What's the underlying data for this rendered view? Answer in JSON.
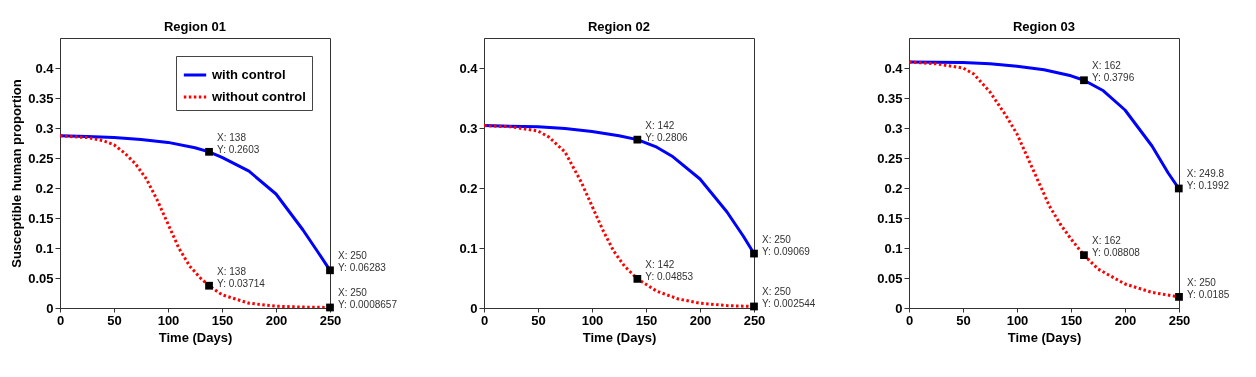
{
  "chart_data": [
    {
      "type": "line",
      "title": "Region 01",
      "xlabel": "Time (Days)",
      "ylabel": "Susceptible human proportion",
      "xlim": [
        0,
        250
      ],
      "ylim": [
        0,
        0.45
      ],
      "xticks": [
        0,
        50,
        100,
        150,
        200,
        250
      ],
      "yticks": [
        0,
        0.05,
        0.1,
        0.15,
        0.2,
        0.25,
        0.3,
        0.35,
        0.4
      ],
      "legend": "top right",
      "series": [
        {
          "name": "with control",
          "color": "#0000ff",
          "line_style": "solid",
          "x": [
            0,
            25,
            50,
            75,
            100,
            125,
            138,
            150,
            175,
            200,
            225,
            240,
            250
          ],
          "values": [
            0.287,
            0.286,
            0.284,
            0.281,
            0.276,
            0.267,
            0.2603,
            0.251,
            0.228,
            0.19,
            0.13,
            0.09,
            0.06283
          ]
        },
        {
          "name": "without control",
          "color": "#ff0000",
          "line_style": "dotted",
          "x": [
            0,
            25,
            40,
            50,
            60,
            70,
            80,
            90,
            100,
            110,
            120,
            130,
            138,
            150,
            175,
            200,
            225,
            250
          ],
          "values": [
            0.287,
            0.284,
            0.279,
            0.272,
            0.258,
            0.24,
            0.215,
            0.18,
            0.14,
            0.1,
            0.07,
            0.05,
            0.03714,
            0.022,
            0.008,
            0.003,
            0.0015,
            0.0008657
          ]
        }
      ],
      "annotations": [
        {
          "text": "X: 138\nY: 0.2603",
          "x": 138,
          "y": 0.2603
        },
        {
          "text": "X: 138\nY: 0.03714",
          "x": 138,
          "y": 0.03714
        },
        {
          "text": "X: 250\nY: 0.06283",
          "x": 250,
          "y": 0.06283
        },
        {
          "text": "X: 250\nY: 0.0008657",
          "x": 250,
          "y": 0.0008657
        }
      ]
    },
    {
      "type": "line",
      "title": "Region 02",
      "xlabel": "Time (Days)",
      "xlim": [
        0,
        250
      ],
      "ylim": [
        0,
        0.45
      ],
      "xticks": [
        0,
        50,
        100,
        150,
        200,
        250
      ],
      "yticks": [
        0,
        0.1,
        0.2,
        0.3,
        0.4
      ],
      "series": [
        {
          "color": "#0000ff",
          "line_style": "solid",
          "x": [
            0,
            50,
            75,
            100,
            125,
            142,
            160,
            175,
            200,
            225,
            240,
            250
          ],
          "values": [
            0.304,
            0.302,
            0.299,
            0.294,
            0.287,
            0.2806,
            0.268,
            0.252,
            0.215,
            0.16,
            0.12,
            0.09069
          ]
        },
        {
          "color": "#ff0000",
          "line_style": "dotted",
          "x": [
            0,
            25,
            50,
            60,
            75,
            90,
            100,
            110,
            120,
            130,
            142,
            160,
            180,
            200,
            225,
            250
          ],
          "values": [
            0.304,
            0.302,
            0.295,
            0.285,
            0.26,
            0.21,
            0.17,
            0.13,
            0.095,
            0.07,
            0.04853,
            0.028,
            0.015,
            0.008,
            0.004,
            0.002544
          ]
        }
      ],
      "annotations": [
        {
          "text": "X: 142\nY: 0.2806",
          "x": 142,
          "y": 0.2806
        },
        {
          "text": "X: 142\nY: 0.04853",
          "x": 142,
          "y": 0.04853
        },
        {
          "text": "X: 250\nY: 0.09069",
          "x": 250,
          "y": 0.09069
        },
        {
          "text": "X: 250\nY: 0.002544",
          "x": 250,
          "y": 0.002544
        }
      ]
    },
    {
      "type": "line",
      "title": "Region 03",
      "xlabel": "Time (Days)",
      "xlim": [
        0,
        250
      ],
      "ylim": [
        0,
        0.45
      ],
      "xticks": [
        0,
        50,
        100,
        150,
        200,
        250
      ],
      "yticks": [
        0,
        0.05,
        0.1,
        0.15,
        0.2,
        0.25,
        0.3,
        0.35,
        0.4
      ],
      "series": [
        {
          "color": "#0000ff",
          "line_style": "solid",
          "x": [
            0,
            50,
            75,
            100,
            125,
            150,
            162,
            180,
            200,
            225,
            240,
            249.8
          ],
          "values": [
            0.41,
            0.409,
            0.407,
            0.403,
            0.397,
            0.387,
            0.3796,
            0.362,
            0.33,
            0.27,
            0.225,
            0.1992
          ]
        },
        {
          "color": "#ff0000",
          "line_style": "dotted",
          "x": [
            0,
            25,
            50,
            60,
            75,
            90,
            100,
            110,
            120,
            130,
            140,
            150,
            162,
            175,
            200,
            225,
            250
          ],
          "values": [
            0.41,
            0.407,
            0.4,
            0.39,
            0.36,
            0.32,
            0.29,
            0.25,
            0.21,
            0.17,
            0.14,
            0.115,
            0.08808,
            0.065,
            0.04,
            0.026,
            0.0185
          ]
        }
      ],
      "annotations": [
        {
          "text": "X: 162\nY: 0.3796",
          "x": 162,
          "y": 0.3796
        },
        {
          "text": "X: 162\nY: 0.08808",
          "x": 162,
          "y": 0.08808
        },
        {
          "text": "X: 249.8\nY: 0.1992",
          "x": 249.8,
          "y": 0.1992
        },
        {
          "text": "X: 250\nY: 0.0185",
          "x": 250,
          "y": 0.0185
        }
      ]
    }
  ]
}
